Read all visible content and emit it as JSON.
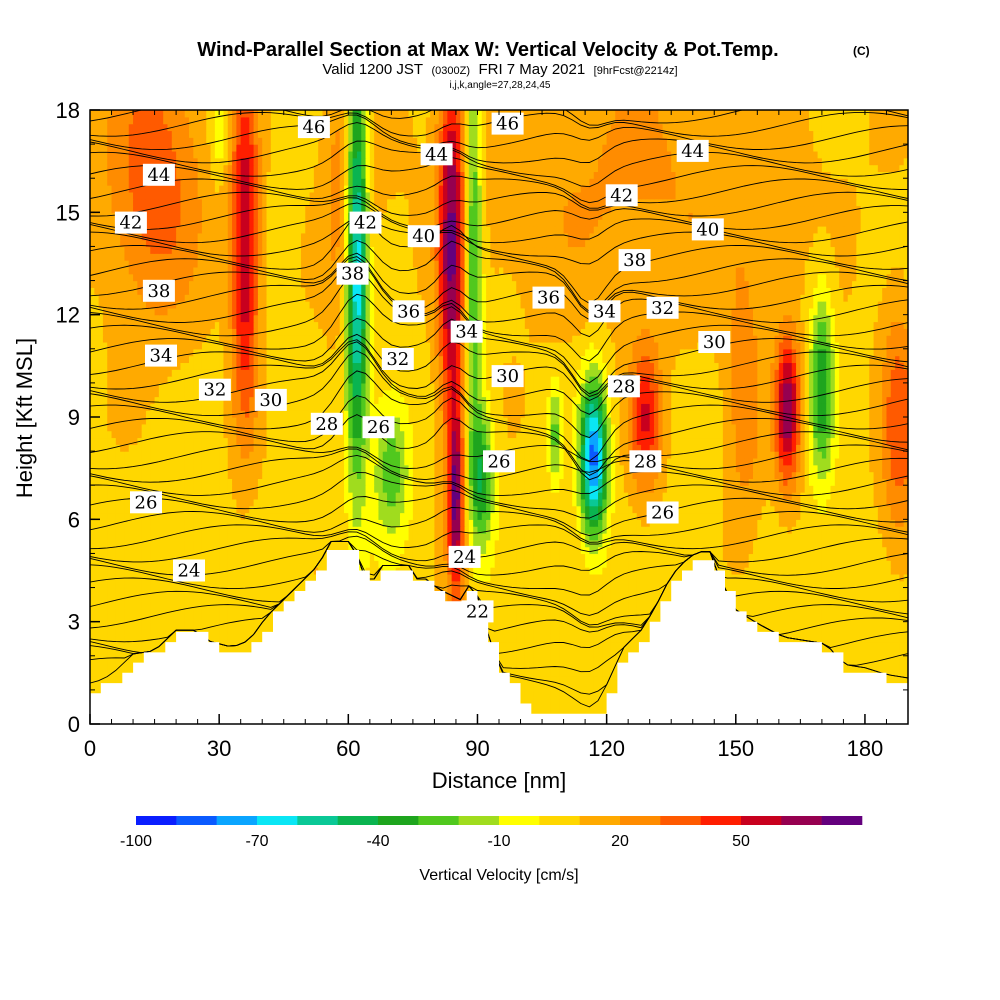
{
  "chart_data": {
    "type": "heatmap",
    "title": "Wind-Parallel Section at Max W: Vertical Velocity & Pot.Temp.",
    "title_mark": "(C)",
    "subtitle_parts": [
      "Valid 1200 JST",
      "(0300Z)",
      "FRI 7 May 2021",
      "[9hrFcst@2214z]"
    ],
    "subtitle2": "i,j,k,angle=27,28,24,45",
    "xlabel": "Distance [nm]",
    "ylabel": "Height [Kft MSL]",
    "xlim": [
      0,
      190
    ],
    "ylim": [
      0,
      18
    ],
    "x_ticks": [
      "0",
      "30",
      "60",
      "90",
      "120",
      "150",
      "180"
    ],
    "y_ticks": [
      "0",
      "3",
      "6",
      "9",
      "12",
      "15",
      "18"
    ],
    "colorbar": {
      "title": "Vertical Velocity [cm/s]",
      "tick_labels": [
        "-100",
        "-70",
        "-40",
        "-10",
        "20",
        "50"
      ],
      "levels": [
        -100,
        -90,
        -80,
        -70,
        -60,
        -50,
        -40,
        -30,
        -20,
        -10,
        0,
        10,
        20,
        30,
        40,
        50,
        60,
        70
      ],
      "colors": [
        "#0a1eff",
        "#0a5aff",
        "#0aa5ff",
        "#0ae6f5",
        "#0ac896",
        "#0ab450",
        "#1ea51e",
        "#50c81e",
        "#a0dc1e",
        "#ffff00",
        "#ffd700",
        "#ffaa00",
        "#ff8c00",
        "#ff5a00",
        "#ff1e00",
        "#c8001e",
        "#960050",
        "#64007d"
      ]
    },
    "terrain": [
      [
        0,
        1
      ],
      [
        5,
        1.3
      ],
      [
        10,
        1.9
      ],
      [
        15,
        2
      ],
      [
        20,
        2.6
      ],
      [
        25,
        2.6
      ],
      [
        27,
        2.3
      ],
      [
        33,
        2.1
      ],
      [
        37,
        2.3
      ],
      [
        41,
        3
      ],
      [
        45,
        3.5
      ],
      [
        49,
        4
      ],
      [
        53,
        4.5
      ],
      [
        56,
        5.2
      ],
      [
        61,
        5.2
      ],
      [
        62,
        4.8
      ],
      [
        64,
        4.1
      ],
      [
        66,
        4.1
      ],
      [
        68,
        4.5
      ],
      [
        74,
        4.5
      ],
      [
        76,
        4.1
      ],
      [
        78,
        4.1
      ],
      [
        81,
        3.8
      ],
      [
        86,
        3.5
      ],
      [
        88,
        3.9
      ],
      [
        90,
        3.6
      ],
      [
        93,
        2.2
      ],
      [
        96,
        1.3
      ],
      [
        100,
        0.7
      ],
      [
        102,
        0.3
      ],
      [
        117,
        0.3
      ],
      [
        120,
        1
      ],
      [
        124,
        2.1
      ],
      [
        128,
        2.6
      ],
      [
        131,
        3.2
      ],
      [
        135,
        4.2
      ],
      [
        138,
        4.6
      ],
      [
        141,
        4.9
      ],
      [
        144,
        4.9
      ],
      [
        146,
        4.2
      ],
      [
        150,
        3.2
      ],
      [
        155,
        2.8
      ],
      [
        161,
        2.4
      ],
      [
        166,
        2.3
      ],
      [
        171,
        2.2
      ],
      [
        175,
        1.6
      ],
      [
        180,
        1.5
      ],
      [
        185,
        1.3
      ],
      [
        190,
        1.2
      ]
    ],
    "updrafts": [
      {
        "x": 36,
        "y": 14,
        "sx": 2.2,
        "sy": 3.5,
        "w": 55
      },
      {
        "x": 15,
        "y": 16,
        "sx": 8,
        "sy": 3,
        "w": 30
      },
      {
        "x": 84,
        "y": 14,
        "sx": 2.2,
        "sy": 4,
        "w": 60
      },
      {
        "x": 85,
        "y": 6.5,
        "sx": 1.3,
        "sy": 2,
        "w": 60
      },
      {
        "x": 129,
        "y": 9,
        "sx": 2.5,
        "sy": 1.5,
        "w": 42
      },
      {
        "x": 162,
        "y": 9.2,
        "sx": 2,
        "sy": 1.5,
        "w": 62
      },
      {
        "x": 188,
        "y": 8.8,
        "sx": 3,
        "sy": 2.5,
        "w": 30
      },
      {
        "x": 152,
        "y": 9.5,
        "sx": 3,
        "sy": 3,
        "w": 18
      },
      {
        "x": 60,
        "y": 16,
        "sx": 4,
        "sy": 3,
        "w": 22
      },
      {
        "x": 125,
        "y": 16,
        "sx": 30,
        "sy": 3,
        "w": 14
      }
    ],
    "downdrafts": [
      {
        "x": 62,
        "y": 14,
        "sx": 1.8,
        "sy": 4.5,
        "w": -85
      },
      {
        "x": 89,
        "y": 14,
        "sx": 1.5,
        "sy": 4,
        "w": -45
      },
      {
        "x": 117,
        "y": 7.8,
        "sx": 2.2,
        "sy": 1.6,
        "w": -90
      },
      {
        "x": 91,
        "y": 7.2,
        "sx": 2,
        "sy": 1.5,
        "w": -45
      },
      {
        "x": 70,
        "y": 7.5,
        "sx": 3,
        "sy": 1.5,
        "w": -35
      },
      {
        "x": 170,
        "y": 10,
        "sx": 2,
        "sy": 2,
        "w": -45
      },
      {
        "x": 108,
        "y": 8.5,
        "sx": 1.2,
        "sy": 1,
        "w": -30
      },
      {
        "x": 196,
        "y": 12.2,
        "sx": 3,
        "sy": 1.5,
        "w": -20
      },
      {
        "x": 30,
        "y": 17.5,
        "sx": 1.5,
        "sy": 1,
        "w": -20
      }
    ],
    "isentrope_labels": [
      {
        "text": "46",
        "x": 52,
        "y": 17.5
      },
      {
        "text": "46",
        "x": 97,
        "y": 17.6
      },
      {
        "text": "44",
        "x": 16,
        "y": 16.1
      },
      {
        "text": "44",
        "x": 80.5,
        "y": 16.7
      },
      {
        "text": "44",
        "x": 140,
        "y": 16.8
      },
      {
        "text": "42",
        "x": 9.5,
        "y": 14.7
      },
      {
        "text": "42",
        "x": 64,
        "y": 14.7
      },
      {
        "text": "42",
        "x": 123.5,
        "y": 15.5
      },
      {
        "text": "40",
        "x": 77.5,
        "y": 14.3
      },
      {
        "text": "40",
        "x": 143.5,
        "y": 14.5
      },
      {
        "text": "38",
        "x": 16,
        "y": 12.7
      },
      {
        "text": "38",
        "x": 61,
        "y": 13.2
      },
      {
        "text": "38",
        "x": 126.5,
        "y": 13.6
      },
      {
        "text": "36",
        "x": 74,
        "y": 12.1
      },
      {
        "text": "36",
        "x": 106.5,
        "y": 12.5
      },
      {
        "text": "34",
        "x": 16.5,
        "y": 10.8
      },
      {
        "text": "34",
        "x": 87.5,
        "y": 11.5
      },
      {
        "text": "34",
        "x": 119.5,
        "y": 12.1
      },
      {
        "text": "32",
        "x": 29,
        "y": 9.8
      },
      {
        "text": "32",
        "x": 71.5,
        "y": 10.7
      },
      {
        "text": "32",
        "x": 133,
        "y": 12.2
      },
      {
        "text": "30",
        "x": 42,
        "y": 9.5
      },
      {
        "text": "30",
        "x": 97,
        "y": 10.2
      },
      {
        "text": "30",
        "x": 145,
        "y": 11.2
      },
      {
        "text": "28",
        "x": 55,
        "y": 8.8
      },
      {
        "text": "28",
        "x": 124,
        "y": 9.9
      },
      {
        "text": "28",
        "x": 129,
        "y": 7.7
      },
      {
        "text": "26",
        "x": 67,
        "y": 8.7
      },
      {
        "text": "26",
        "x": 95,
        "y": 7.7
      },
      {
        "text": "26",
        "x": 133,
        "y": 6.2
      },
      {
        "text": "26",
        "x": 13,
        "y": 6.5
      },
      {
        "text": "24",
        "x": 23,
        "y": 4.5
      },
      {
        "text": "24",
        "x": 87,
        "y": 4.9
      },
      {
        "text": "22",
        "x": 90,
        "y": 3.3
      }
    ]
  }
}
